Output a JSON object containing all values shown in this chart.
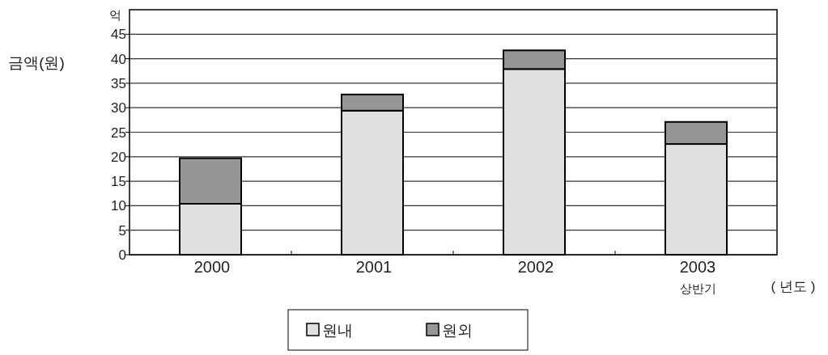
{
  "chart_data": {
    "type": "bar",
    "stacked": true,
    "categories": [
      "2000",
      "2001",
      "2002",
      "2003 상반기"
    ],
    "series": [
      {
        "name": "원내",
        "color": "#e0e0e0",
        "values": [
          10.4,
          29.4,
          37.9,
          22.6
        ]
      },
      {
        "name": "원외",
        "color": "#969696",
        "values": [
          9.3,
          3.3,
          3.8,
          4.5
        ]
      }
    ],
    "ylim": [
      0,
      50
    ],
    "yticks": [
      0,
      5,
      10,
      15,
      20,
      25,
      30,
      35,
      40,
      45
    ],
    "grid": "y",
    "legend": "bottom",
    "xlabel": "( 년도 )",
    "ylabel": "금액(원)",
    "annotations": [
      "억"
    ]
  }
}
